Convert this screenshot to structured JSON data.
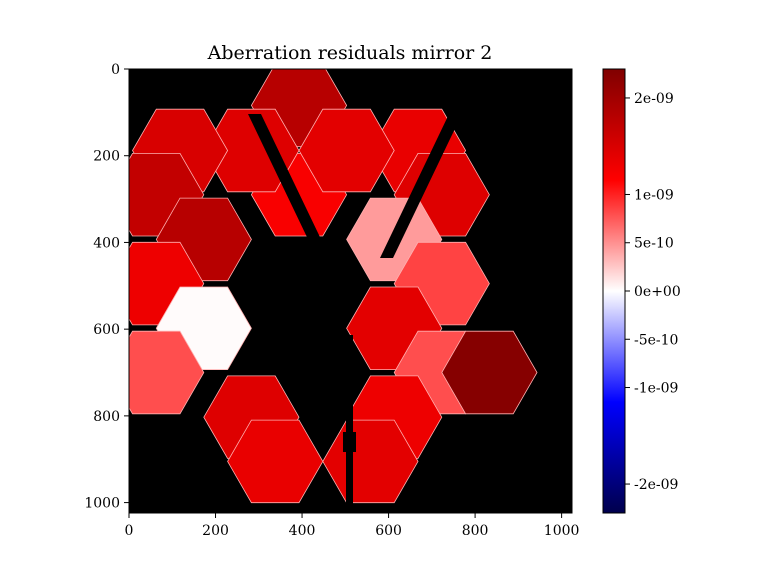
{
  "chart_data": {
    "type": "heatmap",
    "title": "Aberration residuals mirror 2",
    "xlabel": "",
    "ylabel": "",
    "xlim": [
      0,
      1024
    ],
    "ylim": [
      1024,
      0
    ],
    "x_ticks": [
      0,
      200,
      400,
      600,
      800,
      1000
    ],
    "y_ticks": [
      0,
      200,
      400,
      600,
      800,
      1000
    ],
    "colormap": "seismic",
    "color_range": [
      -2.3e-09,
      2.3e-09
    ],
    "colorbar_ticks": [
      {
        "value": 2e-09,
        "label": "2e-09"
      },
      {
        "value": 1e-09,
        "label": "1e-09"
      },
      {
        "value": 5e-10,
        "label": "5e-10"
      },
      {
        "value": 0,
        "label": "0e+00"
      },
      {
        "value": -5e-10,
        "label": "-5e-10"
      },
      {
        "value": -1e-09,
        "label": "-1e-09"
      },
      {
        "value": -2e-09,
        "label": "-2e-09"
      }
    ],
    "background_color": "#000000",
    "segments": [
      {
        "id": "A1",
        "center": [
          393,
          84
        ],
        "value": 1.8e-09
      },
      {
        "id": "B2",
        "center": [
          393,
          290
        ],
        "value": 1.2e-09
      },
      {
        "id": "C2",
        "center": [
          668,
          188
        ],
        "value": 1.35e-09
      },
      {
        "id": "C3",
        "center": [
          503,
          188
        ],
        "value": 1.4e-09
      },
      {
        "id": "C1",
        "center": [
          283,
          188
        ],
        "value": 1.45e-09
      },
      {
        "id": "B1",
        "center": [
          118,
          188
        ],
        "value": 1.5e-09
      },
      {
        "id": "A2",
        "center": [
          723,
          290
        ],
        "value": 1.45e-09
      },
      {
        "id": "A6",
        "center": [
          63,
          290
        ],
        "value": 1.7e-09
      },
      {
        "id": "B6",
        "center": [
          173,
          393
        ],
        "value": 1.8e-09
      },
      {
        "id": "C6",
        "center": [
          613,
          393
        ],
        "value": 4.5e-10
      },
      {
        "id": "B3",
        "center": [
          723,
          495
        ],
        "value": 8.5e-10
      },
      {
        "id": "A5",
        "center": [
          63,
          495
        ],
        "value": 1.3e-09
      },
      {
        "id": "C5",
        "center": [
          173,
          598
        ],
        "value": 2e-11
      },
      {
        "id": "C4",
        "center": [
          613,
          598
        ],
        "value": 1.4e-09
      },
      {
        "id": "A3",
        "center": [
          723,
          700
        ],
        "value": 8e-10
      },
      {
        "id": "B5",
        "center": [
          63,
          700
        ],
        "value": 8e-10
      },
      {
        "id": "B4",
        "center": [
          833,
          700
        ],
        "value": 2.25e-09
      },
      {
        "id": "A4",
        "center": [
          283,
          803
        ],
        "value": 1.45e-09
      },
      {
        "id": "C7",
        "center": [
          613,
          803
        ],
        "value": 1.3e-09
      },
      {
        "id": "D1",
        "center": [
          338,
          905
        ],
        "value": 1.35e-09
      },
      {
        "id": "D2",
        "center": [
          558,
          905
        ],
        "value": 1.4e-09
      }
    ]
  }
}
